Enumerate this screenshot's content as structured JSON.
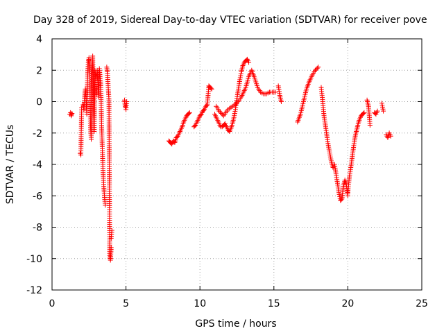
{
  "chart_data": {
    "type": "scatter",
    "title": "Day 328 of 2019, Sidereal Day-to-day VTEC variation (SDTVAR) for receiver pove",
    "xlabel": "GPS time / hours",
    "ylabel": "SDTVAR / TECUs",
    "xlim": [
      0,
      25
    ],
    "ylim": [
      -12,
      4
    ],
    "xticks": [
      0,
      5,
      10,
      15,
      20,
      25
    ],
    "xtick_labels": [
      "0",
      "5",
      "10",
      "15",
      "20",
      "25"
    ],
    "yticks": [
      -12,
      -10,
      -8,
      -6,
      -4,
      -2,
      0,
      2,
      4
    ],
    "ytick_labels": [
      "-12",
      "-10",
      "-8",
      "-6",
      "-4",
      "-2",
      "0",
      "2",
      "4"
    ],
    "grid": true,
    "marker": "+",
    "color": "#ff0000",
    "series": [
      {
        "name": "SDTVAR",
        "segments": [
          {
            "x": [
              1.2,
              1.25,
              1.3,
              1.35
            ],
            "y": [
              -0.8,
              -0.7,
              -0.9,
              -0.75
            ]
          },
          {
            "x": [
              1.9,
              1.95,
              2.0
            ],
            "y": [
              -3.3,
              -3.4,
              -0.4
            ]
          },
          {
            "x": [
              2.1,
              2.15,
              2.2,
              2.25,
              2.3,
              2.35,
              2.4,
              2.45,
              2.5,
              2.55,
              2.6,
              2.65,
              2.7,
              2.75,
              2.8,
              2.85,
              2.9,
              2.95,
              3.0
            ],
            "y": [
              -0.2,
              -0.5,
              0.3,
              0.8,
              0.2,
              -0.8,
              1.5,
              2.5,
              2.8,
              1.9,
              -1.5,
              -2.4,
              1.8,
              2.9,
              0.8,
              -1.9,
              2.0,
              1.6,
              0.5
            ]
          },
          {
            "x": [
              3.05,
              3.1,
              3.15,
              3.2,
              3.25,
              3.3,
              3.35,
              3.4,
              3.45,
              3.5,
              3.55,
              3.6
            ],
            "y": [
              2.0,
              1.2,
              0.3,
              2.1,
              1.6,
              0.9,
              -1.5,
              -3.0,
              -4.5,
              -5.4,
              -6.1,
              -6.6
            ]
          },
          {
            "x": [
              3.7,
              3.75,
              3.8,
              3.85,
              3.9,
              3.95,
              4.0
            ],
            "y": [
              2.2,
              1.8,
              0.9,
              0.1,
              -9.8,
              -10.1,
              -9.3
            ]
          },
          {
            "x": [
              4.0,
              4.05
            ],
            "y": [
              -8.7,
              -8.2
            ]
          },
          {
            "x": [
              4.9,
              4.95,
              5.0,
              5.05
            ],
            "y": [
              0.1,
              -0.3,
              -0.5,
              0.0
            ]
          },
          {
            "x": [
              7.9,
              8.0,
              8.1,
              8.2,
              8.3,
              8.4,
              8.5,
              8.6,
              8.7,
              8.8,
              8.9,
              9.0,
              9.1,
              9.2,
              9.3
            ],
            "y": [
              -2.5,
              -2.6,
              -2.7,
              -2.5,
              -2.6,
              -2.3,
              -2.2,
              -2.0,
              -1.8,
              -1.6,
              -1.3,
              -1.1,
              -0.9,
              -0.8,
              -0.7
            ]
          },
          {
            "x": [
              9.6,
              9.7,
              9.8,
              9.9,
              10.0,
              10.1,
              10.2,
              10.3,
              10.4,
              10.5,
              10.6,
              10.7,
              10.8
            ],
            "y": [
              -1.6,
              -1.5,
              -1.3,
              -1.1,
              -0.9,
              -0.8,
              -0.6,
              -0.5,
              -0.3,
              -0.2,
              1.0,
              0.9,
              0.8
            ]
          },
          {
            "x": [
              11.0,
              11.1,
              11.2,
              11.3,
              11.4,
              11.5,
              11.6,
              11.7,
              11.8,
              11.9,
              12.0,
              12.1,
              12.2,
              12.3,
              12.4,
              12.5,
              12.6,
              12.7,
              12.8,
              12.9,
              13.0,
              13.1,
              13.2,
              13.3
            ],
            "y": [
              -0.8,
              -1.0,
              -1.2,
              -1.4,
              -1.6,
              -1.6,
              -1.5,
              -1.4,
              -1.6,
              -1.8,
              -1.9,
              -1.7,
              -1.4,
              -1.0,
              -0.5,
              0.2,
              0.8,
              1.4,
              1.9,
              2.3,
              2.5,
              2.6,
              2.7,
              2.5
            ]
          },
          {
            "x": [
              11.1,
              11.3,
              11.6,
              11.9,
              12.2,
              12.5,
              12.8,
              13.1,
              13.3,
              13.5,
              13.7,
              13.9,
              14.1,
              14.3,
              14.5,
              14.7,
              14.9,
              15.1
            ],
            "y": [
              -0.3,
              -0.6,
              -0.9,
              -0.5,
              -0.3,
              -0.1,
              0.3,
              0.9,
              1.6,
              2.0,
              1.5,
              0.9,
              0.6,
              0.5,
              0.5,
              0.6,
              0.6,
              0.6
            ]
          },
          {
            "x": [
              15.3,
              15.4,
              15.5
            ],
            "y": [
              1.0,
              0.4,
              0.0
            ]
          },
          {
            "x": [
              16.6,
              16.8,
              17.0,
              17.2,
              17.4,
              17.6,
              17.8,
              18.0
            ],
            "y": [
              -1.3,
              -0.8,
              0.0,
              0.8,
              1.3,
              1.7,
              2.0,
              2.2
            ]
          },
          {
            "x": [
              18.2,
              18.3,
              18.4,
              18.5,
              18.6,
              18.7,
              18.8,
              18.9,
              19.0,
              19.1,
              19.2,
              19.3,
              19.4,
              19.5,
              19.6,
              19.7,
              19.8,
              19.9,
              20.0
            ],
            "y": [
              0.9,
              0.0,
              -1.0,
              -1.6,
              -2.3,
              -2.9,
              -3.4,
              -3.9,
              -4.2,
              -4.0,
              -4.6,
              -5.2,
              -5.8,
              -6.3,
              -6.2,
              -5.4,
              -5.0,
              -5.3,
              -6.0
            ]
          },
          {
            "x": [
              20.0,
              20.1,
              20.2,
              20.3,
              20.4,
              20.5,
              20.6,
              20.7,
              20.8,
              20.9,
              21.0,
              21.1
            ],
            "y": [
              -5.8,
              -4.8,
              -4.2,
              -3.5,
              -2.8,
              -2.2,
              -1.8,
              -1.4,
              -1.1,
              -0.9,
              -0.8,
              -0.7
            ]
          },
          {
            "x": [
              21.3,
              21.4,
              21.5
            ],
            "y": [
              0.1,
              -0.3,
              -1.5
            ]
          },
          {
            "x": [
              21.8,
              21.9,
              22.0
            ],
            "y": [
              -0.7,
              -0.8,
              -0.6
            ]
          },
          {
            "x": [
              22.3,
              22.4
            ],
            "y": [
              -0.1,
              -0.6
            ]
          },
          {
            "x": [
              22.6,
              22.7,
              22.8,
              22.9
            ],
            "y": [
              -2.1,
              -2.3,
              -2.0,
              -2.2
            ]
          }
        ]
      }
    ]
  }
}
